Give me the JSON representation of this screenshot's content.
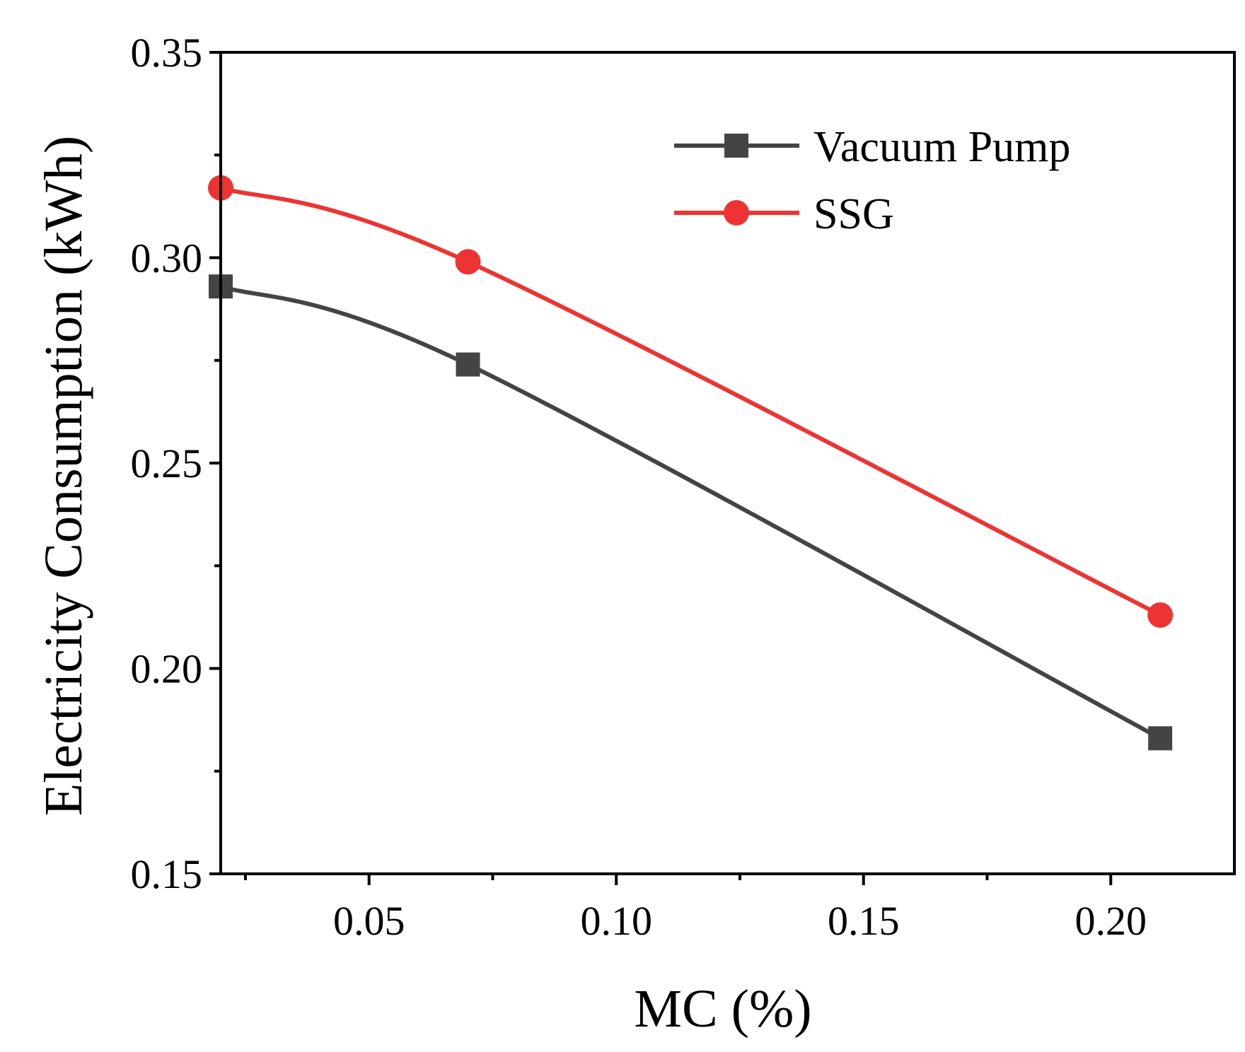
{
  "chart_data": {
    "type": "line",
    "xlabel": "MC (%)",
    "ylabel": "Electricity Consumption (kWh)",
    "xlim": [
      0.02,
      0.225
    ],
    "ylim": [
      0.15,
      0.35
    ],
    "xticks": [
      {
        "value": 0.05,
        "label": "0.05"
      },
      {
        "value": 0.1,
        "label": "0.10"
      },
      {
        "value": 0.15,
        "label": "0.15"
      },
      {
        "value": 0.2,
        "label": "0.20"
      }
    ],
    "xminor": [
      0.025,
      0.075,
      0.125,
      0.175
    ],
    "yticks": [
      {
        "value": 0.15,
        "label": "0.15"
      },
      {
        "value": 0.2,
        "label": "0.20"
      },
      {
        "value": 0.25,
        "label": "0.25"
      },
      {
        "value": 0.3,
        "label": "0.30"
      },
      {
        "value": 0.35,
        "label": "0.35"
      }
    ],
    "yminor": [
      0.175,
      0.225,
      0.275,
      0.325
    ],
    "grid": false,
    "legend_position": "top-right",
    "series": [
      {
        "name": "Vacuum Pump",
        "color": "#444444",
        "marker": "square",
        "x": [
          0.02,
          0.07,
          0.21
        ],
        "y": [
          0.293,
          0.274,
          0.183
        ]
      },
      {
        "name": "SSG",
        "color": "#ee3333",
        "marker": "circle",
        "x": [
          0.02,
          0.07,
          0.21
        ],
        "y": [
          0.317,
          0.299,
          0.213
        ]
      }
    ]
  }
}
